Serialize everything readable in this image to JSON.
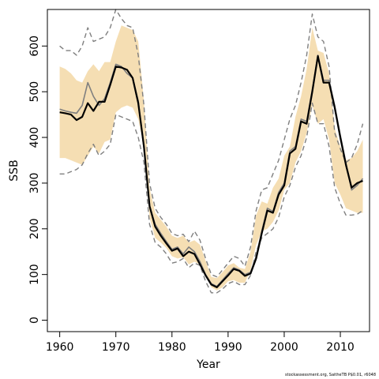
{
  "chart_data": {
    "type": "line",
    "xlabel": "Year",
    "ylabel": "SSB",
    "xlim": [
      1957.8,
      2015.2
    ],
    "ylim": [
      -25,
      680
    ],
    "x_ticks": [
      1960,
      1970,
      1980,
      1990,
      2000,
      2010
    ],
    "y_ticks": [
      0,
      100,
      200,
      300,
      400,
      500,
      600
    ],
    "grid": false,
    "legend": "none",
    "colors": {
      "band": "#f5deb3",
      "main": "#000000",
      "previous": "#7f7f7f",
      "dashed": "#7f7f7f"
    },
    "years": [
      1960,
      1961,
      1962,
      1963,
      1964,
      1965,
      1966,
      1967,
      1968,
      1969,
      1970,
      1971,
      1972,
      1973,
      1974,
      1975,
      1976,
      1977,
      1978,
      1979,
      1980,
      1981,
      1982,
      1983,
      1984,
      1985,
      1986,
      1987,
      1988,
      1989,
      1990,
      1991,
      1992,
      1993,
      1994,
      1995,
      1996,
      1997,
      1998,
      1999,
      2000,
      2001,
      2002,
      2003,
      2004,
      2005,
      2006,
      2007,
      2008,
      2009,
      2010,
      2011,
      2012,
      2013,
      2014
    ],
    "series": [
      {
        "role": "band_upper",
        "values": [
          555,
          550,
          540,
          525,
          520,
          545,
          560,
          545,
          565,
          565,
          610,
          645,
          640,
          635,
          610,
          480,
          290,
          235,
          220,
          205,
          185,
          180,
          185,
          170,
          175,
          165,
          130,
          95,
          92,
          105,
          120,
          125,
          115,
          112,
          150,
          230,
          260,
          255,
          290,
          310,
          360,
          380,
          445,
          490,
          550,
          640,
          590,
          585,
          540,
          420,
          380,
          350,
          355,
          370,
          395
        ]
      },
      {
        "role": "band_lower",
        "values": [
          355,
          355,
          350,
          345,
          340,
          360,
          380,
          365,
          390,
          395,
          455,
          465,
          470,
          465,
          440,
          380,
          225,
          180,
          170,
          158,
          140,
          135,
          138,
          122,
          128,
          122,
          100,
          72,
          65,
          72,
          85,
          88,
          82,
          82,
          110,
          165,
          195,
          200,
          215,
          240,
          285,
          300,
          345,
          370,
          410,
          470,
          430,
          440,
          395,
          300,
          275,
          245,
          240,
          235,
          235
        ]
      },
      {
        "name": "",
        "role": "main",
        "values": [
          455,
          453,
          450,
          438,
          445,
          475,
          458,
          478,
          478,
          515,
          555,
          553,
          548,
          530,
          475,
          380,
          250,
          205,
          185,
          168,
          152,
          157,
          140,
          150,
          145,
          122,
          98,
          78,
          72,
          85,
          98,
          112,
          108,
          97,
          102,
          135,
          190,
          240,
          235,
          275,
          295,
          365,
          375,
          435,
          430,
          500,
          578,
          520,
          520,
          465,
          400,
          340,
          290,
          300,
          305
        ]
      },
      {
        "name": "",
        "role": "previous",
        "values": [
          462,
          458,
          455,
          453,
          470,
          520,
          490,
          470,
          485,
          520,
          560,
          555,
          540,
          530,
          480,
          375,
          250,
          210,
          190,
          172,
          155,
          160,
          145,
          160,
          150,
          128,
          100,
          80,
          74,
          88,
          102,
          115,
          110,
          100,
          105,
          140,
          195,
          245,
          238,
          280,
          300,
          370,
          380,
          440,
          435,
          505,
          580,
          525,
          525,
          470,
          405,
          345,
          285,
          295,
          310
        ]
      },
      {
        "role": "prev_upper",
        "values": [
          600,
          590,
          590,
          580,
          600,
          640,
          610,
          615,
          620,
          640,
          680,
          660,
          645,
          640,
          580,
          470,
          300,
          245,
          225,
          210,
          190,
          185,
          188,
          172,
          195,
          175,
          135,
          100,
          95,
          110,
          125,
          140,
          135,
          118,
          160,
          240,
          285,
          290,
          320,
          350,
          395,
          440,
          470,
          520,
          580,
          670,
          620,
          610,
          555,
          410,
          375,
          345,
          355,
          385,
          430
        ]
      },
      {
        "role": "prev_lower",
        "values": [
          320,
          320,
          325,
          330,
          340,
          365,
          385,
          360,
          370,
          385,
          450,
          445,
          440,
          435,
          400,
          345,
          210,
          170,
          160,
          145,
          125,
          128,
          135,
          115,
          125,
          120,
          85,
          60,
          60,
          68,
          80,
          85,
          78,
          78,
          98,
          150,
          180,
          190,
          200,
          225,
          270,
          295,
          335,
          360,
          400,
          475,
          430,
          430,
          380,
          290,
          255,
          230,
          230,
          232,
          240
        ]
      }
    ]
  },
  "footer": "stockassessment.org, SaitheTB P$0.01, r6048"
}
